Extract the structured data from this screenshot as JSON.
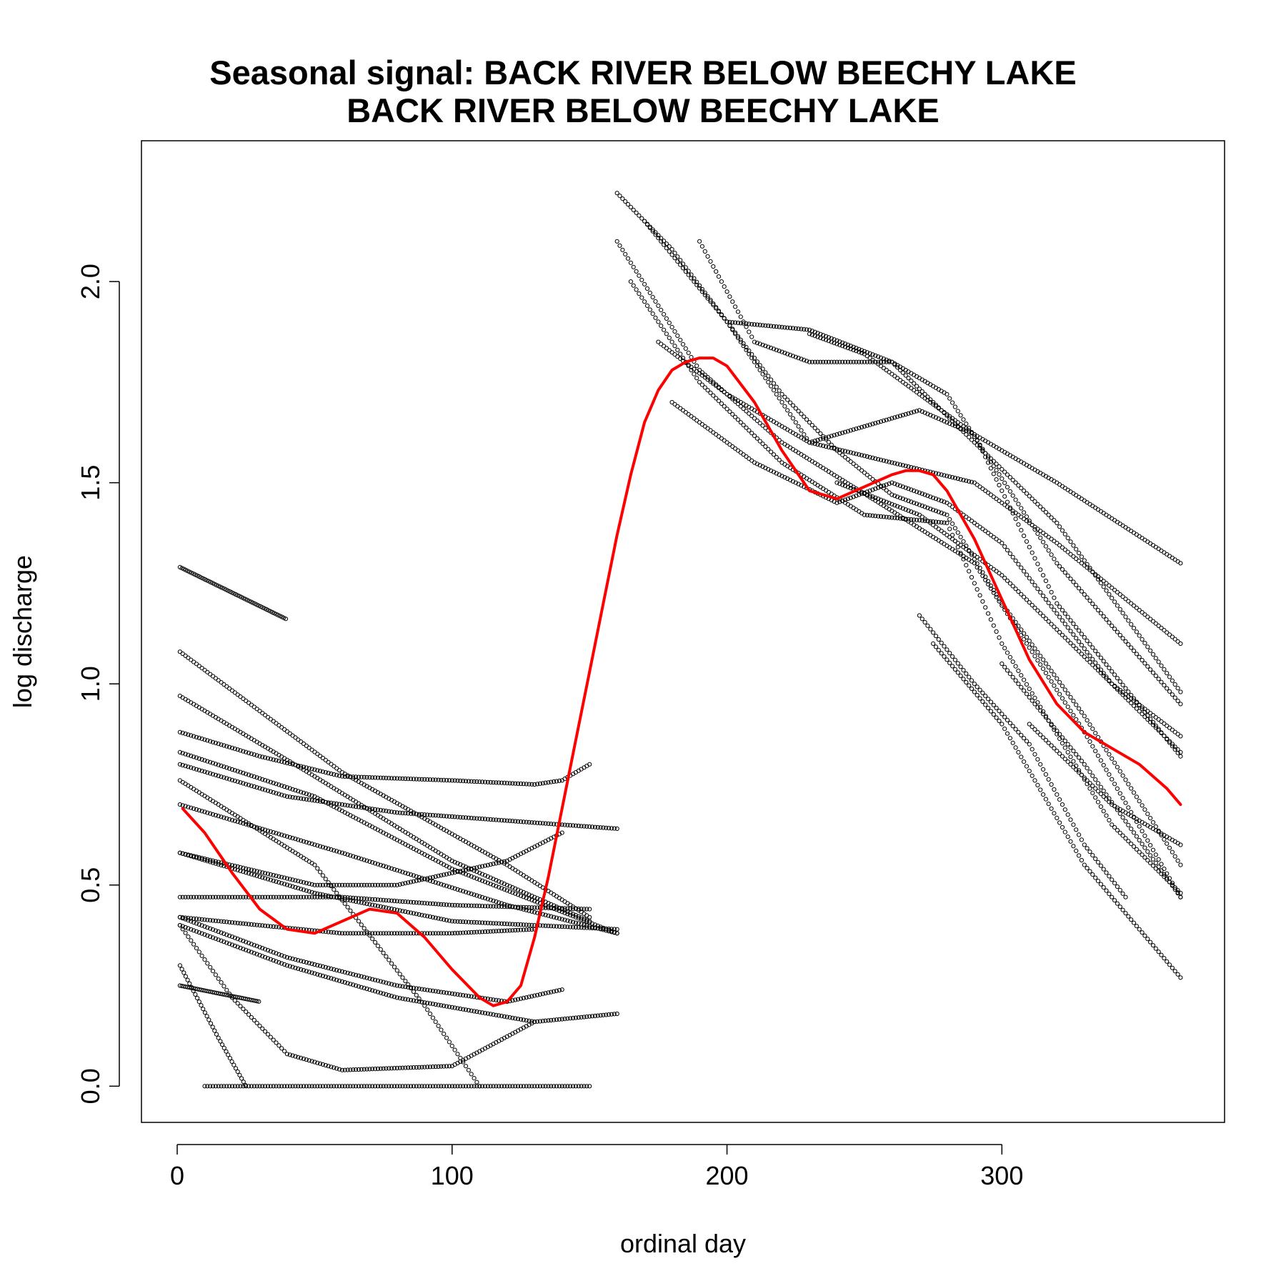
{
  "chart_data": {
    "type": "scatter",
    "title": "Seasonal signal: BACK RIVER BELOW BEECHY LAKE",
    "subtitle": "BACK RIVER BELOW BEECHY LAKE",
    "xlabel": "ordinal day",
    "ylabel": "log discharge",
    "xlim": [
      -13,
      381
    ],
    "ylim": [
      -0.09,
      2.35
    ],
    "xticks": [
      0,
      100,
      200,
      300
    ],
    "yticks": [
      0.0,
      0.5,
      1.0,
      1.5,
      2.0
    ],
    "xtick_labels": [
      "0",
      "100",
      "200",
      "300"
    ],
    "ytick_labels": [
      "0.0",
      "0.5",
      "1.0",
      "1.5",
      "2.0"
    ],
    "grid": false,
    "point_marker": "open circle",
    "point_color": "#000000",
    "smooth_color": "#ff0000",
    "yearly_traces": [
      {
        "x": [
          1,
          40
        ],
        "y": [
          1.29,
          1.16
        ]
      },
      {
        "x": [
          1,
          60,
          120,
          150
        ],
        "y": [
          1.08,
          0.78,
          0.55,
          0.42
        ]
      },
      {
        "x": [
          1,
          50,
          100,
          150
        ],
        "y": [
          0.97,
          0.77,
          0.56,
          0.41
        ]
      },
      {
        "x": [
          1,
          30,
          60,
          100,
          130,
          140,
          150
        ],
        "y": [
          0.88,
          0.82,
          0.77,
          0.76,
          0.75,
          0.76,
          0.8
        ]
      },
      {
        "x": [
          1,
          50,
          100,
          160
        ],
        "y": [
          0.83,
          0.72,
          0.54,
          0.38
        ]
      },
      {
        "x": [
          1,
          40,
          80,
          160
        ],
        "y": [
          0.8,
          0.72,
          0.68,
          0.64
        ]
      },
      {
        "x": [
          1,
          50,
          90,
          110
        ],
        "y": [
          0.76,
          0.55,
          0.2,
          0.0
        ]
      },
      {
        "x": [
          1,
          60,
          120,
          160
        ],
        "y": [
          0.7,
          0.58,
          0.45,
          0.38
        ]
      },
      {
        "x": [
          1,
          50,
          100,
          160
        ],
        "y": [
          0.58,
          0.48,
          0.41,
          0.39
        ]
      },
      {
        "x": [
          1,
          50,
          80,
          120,
          140
        ],
        "y": [
          0.58,
          0.5,
          0.5,
          0.56,
          0.63
        ]
      },
      {
        "x": [
          1,
          60,
          100,
          150
        ],
        "y": [
          0.47,
          0.47,
          0.45,
          0.44
        ]
      },
      {
        "x": [
          1,
          30,
          60,
          100,
          130
        ],
        "y": [
          0.42,
          0.4,
          0.38,
          0.38,
          0.39
        ]
      },
      {
        "x": [
          1,
          40,
          80,
          120,
          140
        ],
        "y": [
          0.42,
          0.32,
          0.25,
          0.21,
          0.24
        ]
      },
      {
        "x": [
          1,
          40,
          80,
          130,
          160
        ],
        "y": [
          0.4,
          0.3,
          0.22,
          0.16,
          0.18
        ]
      },
      {
        "x": [
          1,
          20,
          40,
          60,
          100,
          130
        ],
        "y": [
          0.4,
          0.22,
          0.08,
          0.04,
          0.05,
          0.16
        ]
      },
      {
        "x": [
          1,
          30
        ],
        "y": [
          0.25,
          0.21
        ]
      },
      {
        "x": [
          1,
          15,
          25
        ],
        "y": [
          0.3,
          0.12,
          0.0
        ]
      },
      {
        "x": [
          10,
          150
        ],
        "y": [
          0.0,
          0.0
        ]
      },
      {
        "x": [
          160,
          180,
          200,
          220,
          240,
          260,
          280,
          300,
          330,
          365
        ],
        "y": [
          2.22,
          2.08,
          1.9,
          1.72,
          1.58,
          1.47,
          1.42,
          1.2,
          0.92,
          0.55
        ]
      },
      {
        "x": [
          160,
          190,
          220,
          260,
          290,
          330,
          365
        ],
        "y": [
          2.1,
          1.78,
          1.6,
          1.43,
          1.3,
          0.88,
          0.47
        ]
      },
      {
        "x": [
          165,
          190,
          220,
          250,
          280,
          300,
          340,
          365
        ],
        "y": [
          2.0,
          1.75,
          1.55,
          1.42,
          1.4,
          1.1,
          0.65,
          0.48
        ]
      },
      {
        "x": [
          170,
          200,
          230,
          260,
          280,
          320,
          365
        ],
        "y": [
          2.15,
          1.9,
          1.88,
          1.8,
          1.72,
          1.3,
          0.95
        ]
      },
      {
        "x": [
          175,
          200,
          230,
          270,
          290,
          320,
          365
        ],
        "y": [
          1.85,
          1.72,
          1.6,
          1.68,
          1.62,
          1.2,
          0.82
        ]
      },
      {
        "x": [
          180,
          210,
          240,
          260,
          280,
          300,
          340,
          365
        ],
        "y": [
          1.7,
          1.55,
          1.45,
          1.5,
          1.45,
          1.35,
          1.0,
          0.83
        ]
      },
      {
        "x": [
          190,
          210,
          230,
          260,
          290,
          320,
          365
        ],
        "y": [
          2.1,
          1.85,
          1.8,
          1.8,
          1.6,
          1.4,
          0.98
        ]
      },
      {
        "x": [
          200,
          230,
          260,
          290,
          320,
          365
        ],
        "y": [
          1.9,
          1.6,
          1.55,
          1.5,
          1.35,
          1.1
        ]
      },
      {
        "x": [
          230,
          250,
          270,
          290,
          320,
          365
        ],
        "y": [
          1.87,
          1.82,
          1.72,
          1.62,
          1.5,
          1.3
        ]
      },
      {
        "x": [
          240,
          270,
          300,
          340,
          365
        ],
        "y": [
          1.5,
          1.42,
          1.27,
          1.0,
          0.87
        ]
      },
      {
        "x": [
          270,
          290,
          310,
          330,
          345
        ],
        "y": [
          1.17,
          1.0,
          0.85,
          0.6,
          0.47
        ]
      },
      {
        "x": [
          275,
          300,
          330,
          365
        ],
        "y": [
          1.1,
          0.9,
          0.55,
          0.27
        ]
      },
      {
        "x": [
          300,
          330,
          365
        ],
        "y": [
          1.05,
          0.8,
          0.47
        ]
      },
      {
        "x": [
          310,
          340,
          365
        ],
        "y": [
          0.9,
          0.7,
          0.6
        ]
      }
    ],
    "lowess": {
      "x": [
        2,
        10,
        20,
        30,
        40,
        50,
        60,
        70,
        80,
        90,
        100,
        110,
        115,
        120,
        125,
        130,
        135,
        140,
        145,
        150,
        155,
        160,
        165,
        170,
        175,
        180,
        185,
        190,
        195,
        200,
        210,
        220,
        230,
        240,
        250,
        260,
        265,
        270,
        275,
        280,
        290,
        300,
        310,
        320,
        330,
        340,
        350,
        360,
        365
      ],
      "y": [
        0.69,
        0.63,
        0.53,
        0.44,
        0.39,
        0.38,
        0.41,
        0.44,
        0.43,
        0.37,
        0.29,
        0.22,
        0.2,
        0.21,
        0.25,
        0.37,
        0.52,
        0.69,
        0.86,
        1.03,
        1.2,
        1.37,
        1.52,
        1.65,
        1.73,
        1.78,
        1.8,
        1.81,
        1.81,
        1.79,
        1.7,
        1.58,
        1.48,
        1.46,
        1.49,
        1.52,
        1.53,
        1.53,
        1.52,
        1.48,
        1.36,
        1.21,
        1.06,
        0.95,
        0.88,
        0.84,
        0.8,
        0.74,
        0.7
      ]
    }
  }
}
